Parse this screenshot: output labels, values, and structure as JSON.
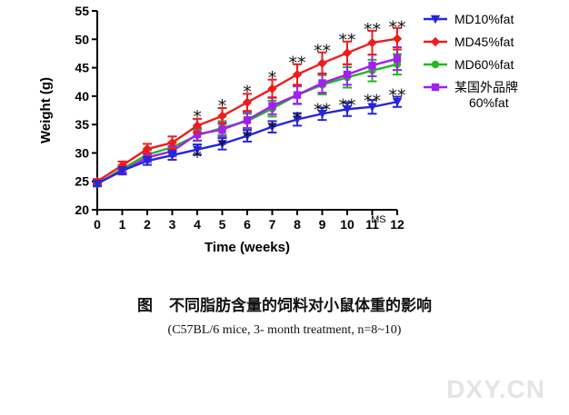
{
  "chart_data": {
    "type": "line",
    "xlabel": "Time (weeks)",
    "ylabel": "Weight (g)",
    "xlim": [
      0,
      12
    ],
    "ylim": [
      20,
      55
    ],
    "x": [
      0,
      1,
      2,
      3,
      4,
      5,
      6,
      7,
      8,
      9,
      10,
      11,
      12
    ],
    "yticks": [
      20,
      25,
      30,
      35,
      40,
      45,
      50,
      55
    ],
    "grid": false,
    "legend_position": "top-right",
    "series": [
      {
        "name": "MD10%fat",
        "color": "#2626d9",
        "marker": "triangle-down",
        "values": [
          24.6,
          26.9,
          28.6,
          29.6,
          30.6,
          31.6,
          33.0,
          34.6,
          35.9,
          36.9,
          37.7,
          38.1,
          39.0
        ],
        "errors": [
          0.4,
          0.6,
          0.7,
          0.8,
          0.9,
          1.0,
          1.0,
          1.0,
          1.1,
          1.1,
          1.2,
          1.2,
          0.9
        ]
      },
      {
        "name": "MD45%fat",
        "color": "#ee1c1c",
        "marker": "diamond",
        "values": [
          25.0,
          27.8,
          30.7,
          31.8,
          34.8,
          36.5,
          38.9,
          41.3,
          43.8,
          45.8,
          47.6,
          49.4,
          50.1
        ],
        "errors": [
          0.4,
          0.7,
          0.9,
          1.1,
          1.2,
          1.4,
          1.5,
          1.6,
          1.8,
          1.9,
          2.0,
          2.1,
          1.9
        ]
      },
      {
        "name": "MD60%fat",
        "color": "#22b822",
        "marker": "circle",
        "values": [
          24.5,
          27.2,
          29.7,
          31.0,
          33.1,
          34.4,
          35.6,
          37.8,
          40.2,
          42.0,
          43.3,
          44.5,
          45.6
        ],
        "errors": [
          0.4,
          0.6,
          0.8,
          0.9,
          1.0,
          1.2,
          1.3,
          1.4,
          1.5,
          1.7,
          1.8,
          1.9,
          1.8
        ]
      },
      {
        "name": "某国外品牌\n60%fat",
        "color": "#a020ef",
        "marker": "square",
        "values": [
          24.7,
          26.8,
          29.2,
          30.3,
          33.3,
          34.1,
          35.8,
          38.3,
          40.2,
          42.3,
          43.8,
          45.4,
          46.6
        ],
        "errors": [
          0.4,
          0.6,
          0.8,
          0.9,
          1.1,
          1.2,
          1.4,
          1.5,
          1.6,
          1.7,
          1.8,
          1.9,
          2.0
        ]
      }
    ],
    "annotations": [
      {
        "x": 4,
        "y": 29.5,
        "text": "*"
      },
      {
        "x": 5,
        "y": 31.5,
        "text": "*"
      },
      {
        "x": 6,
        "y": 33.0,
        "text": "*"
      },
      {
        "x": 7,
        "y": 34.6,
        "text": "*"
      },
      {
        "x": 8,
        "y": 36.3,
        "text": "*"
      },
      {
        "x": 9,
        "y": 37.8,
        "text": "**"
      },
      {
        "x": 10,
        "y": 38.6,
        "text": "**"
      },
      {
        "x": 11,
        "y": 39.4,
        "text": "**"
      },
      {
        "x": 12,
        "y": 40.4,
        "text": "**"
      },
      {
        "x": 4,
        "y": 36.6,
        "text": "*"
      },
      {
        "x": 5,
        "y": 38.5,
        "text": "*"
      },
      {
        "x": 6,
        "y": 41.0,
        "text": "*"
      },
      {
        "x": 7,
        "y": 43.5,
        "text": "*"
      },
      {
        "x": 8,
        "y": 46.1,
        "text": "**"
      },
      {
        "x": 9,
        "y": 48.2,
        "text": "**"
      },
      {
        "x": 10,
        "y": 50.1,
        "text": "**"
      },
      {
        "x": 11,
        "y": 52.0,
        "text": "**"
      },
      {
        "x": 12,
        "y": 52.4,
        "text": "**"
      },
      {
        "x": 11.25,
        "y": 17.8,
        "text": "MS"
      }
    ]
  },
  "caption": {
    "figure_label": "图",
    "title": "不同脂肪含量的饲料对小鼠体重的影响",
    "subtitle": "(C57BL/6  mice, 3- month treatment, n=8~10)"
  },
  "watermark": "DXY.CN"
}
